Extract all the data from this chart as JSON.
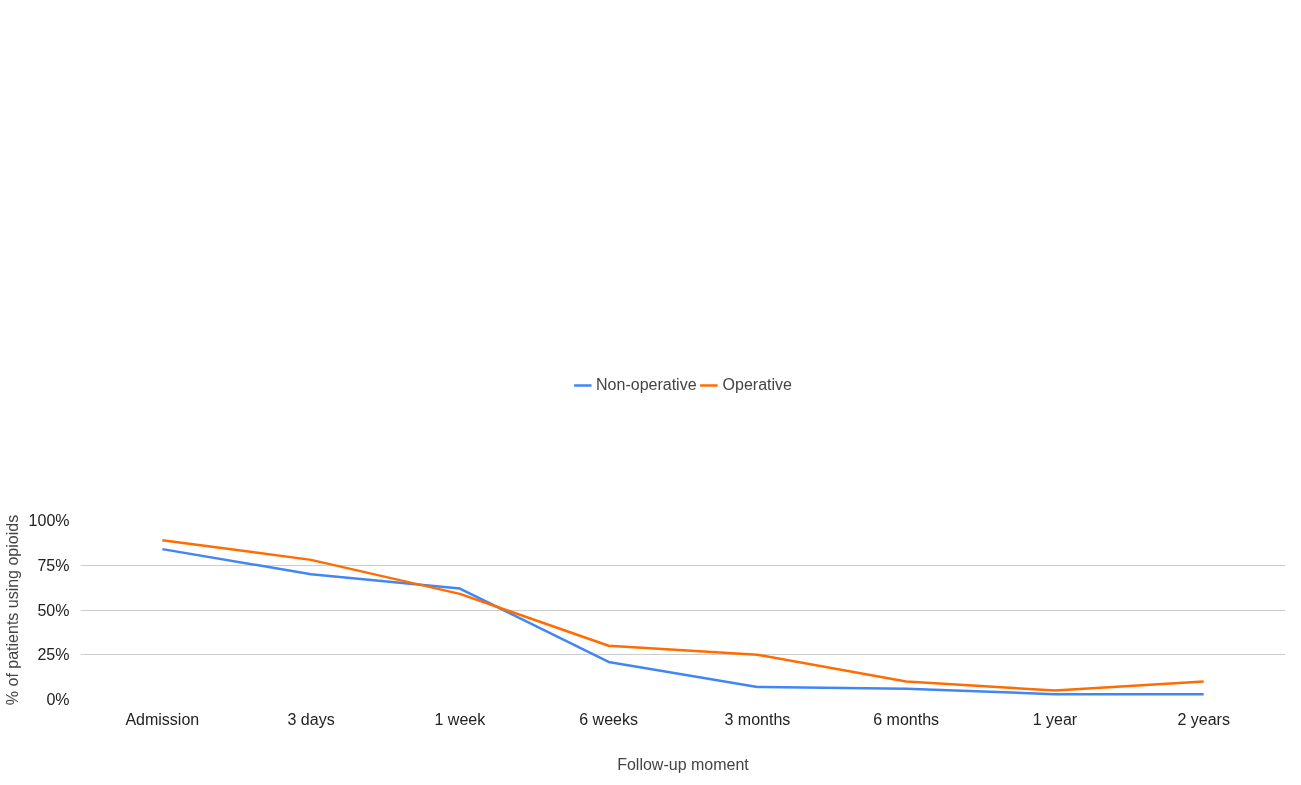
{
  "chart_data": {
    "type": "line",
    "xlabel": "Follow-up moment",
    "ylabel": "% of patients using opioids",
    "categories": [
      "Admission",
      "3 days",
      "1 week",
      "6 weeks",
      "3 months",
      "6 months",
      "1 year",
      "2 years"
    ],
    "series": [
      {
        "name": "Non-operative",
        "color": "#4285f4",
        "values": [
          84,
          70,
          62,
          21,
          7,
          6,
          3,
          3
        ]
      },
      {
        "name": "Operative",
        "color": "#ff6d01",
        "values": [
          89,
          78,
          59,
          30,
          25,
          10,
          5,
          10
        ]
      }
    ],
    "ylim": [
      0,
      100
    ],
    "yticks": [
      {
        "value": 0,
        "label": "0%"
      },
      {
        "value": 25,
        "label": "25%"
      },
      {
        "value": 50,
        "label": "50%"
      },
      {
        "value": 75,
        "label": "75%"
      },
      {
        "value": 100,
        "label": "100%"
      }
    ],
    "grid": "y",
    "legend": "top",
    "marker": "none",
    "line_style": "solid"
  }
}
